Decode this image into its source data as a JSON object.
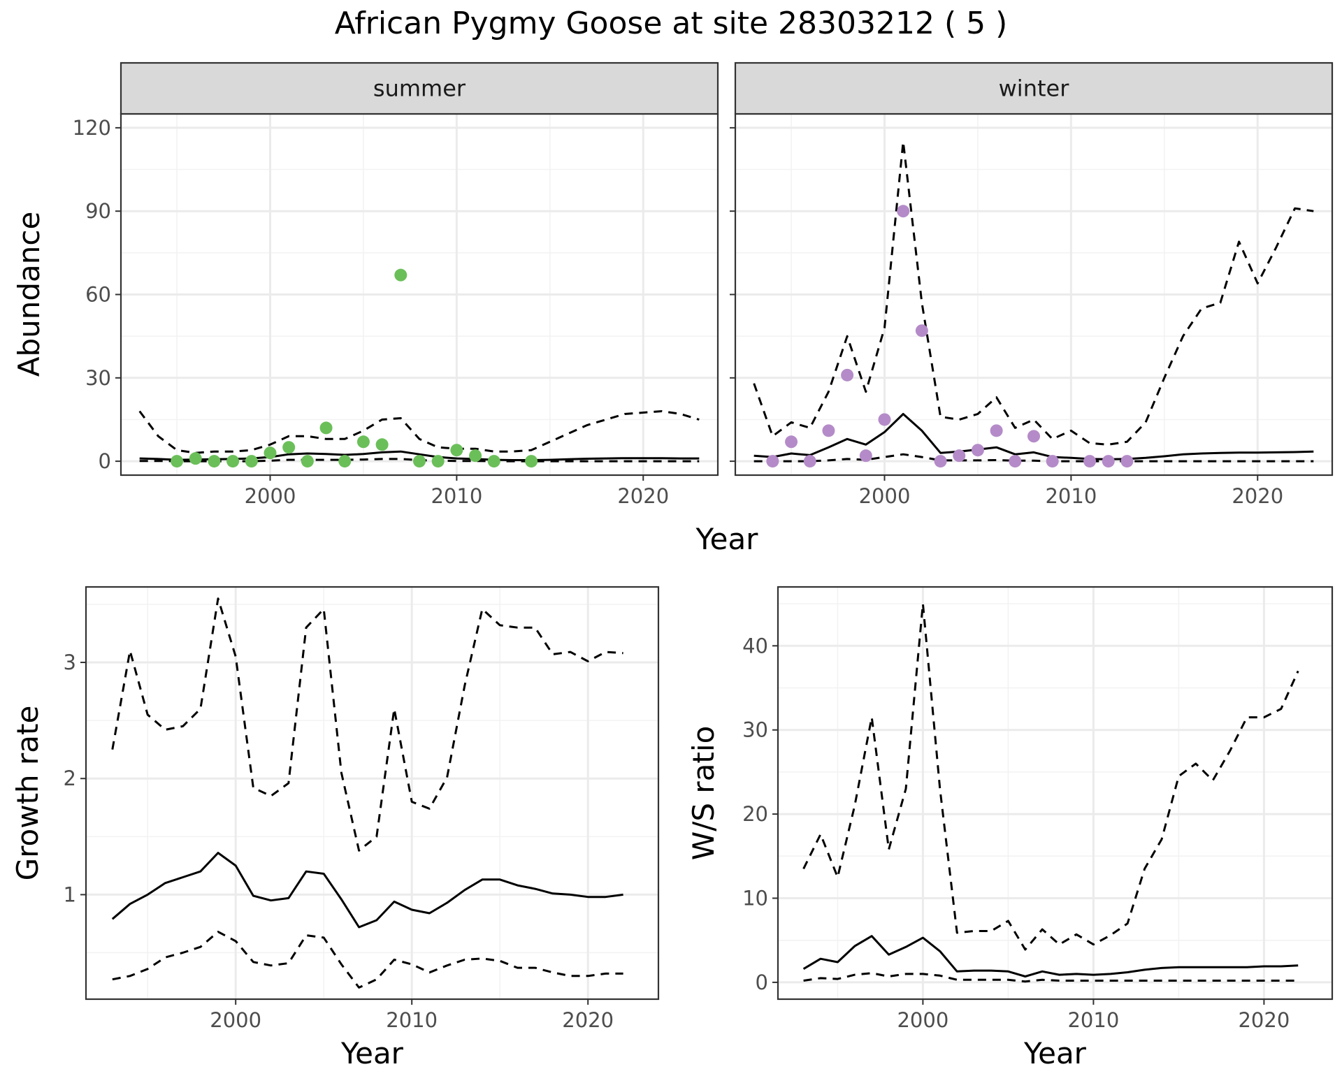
{
  "figure": {
    "title": "African Pygmy Goose at site 28303212 ( 5 )"
  },
  "chart_data": [
    {
      "id": "summer",
      "type": "line",
      "strip": "summer",
      "xlabel": "Year",
      "ylabel": "Abundance",
      "xlim": [
        1992,
        2024
      ],
      "ylim": [
        -5,
        125
      ],
      "xticks": [
        2000,
        2010,
        2020
      ],
      "yticks": [
        0,
        30,
        60,
        90,
        120
      ],
      "grid": true,
      "point_color": "#6BBF59",
      "series": [
        {
          "role": "estimate",
          "style": "solid",
          "x": [
            1993,
            1994,
            1995,
            1996,
            1997,
            1998,
            1999,
            2000,
            2001,
            2002,
            2003,
            2004,
            2005,
            2006,
            2007,
            2008,
            2009,
            2010,
            2011,
            2012,
            2013,
            2014,
            2015,
            2016,
            2017,
            2018,
            2019,
            2020,
            2021,
            2022,
            2023
          ],
          "y": [
            1.0,
            0.8,
            0.5,
            0.6,
            0.7,
            0.8,
            1.0,
            1.5,
            2.5,
            2.8,
            2.6,
            2.3,
            2.6,
            3.2,
            3.5,
            2.5,
            1.5,
            1.0,
            0.8,
            0.5,
            0.4,
            0.4,
            0.5,
            0.7,
            0.9,
            1.0,
            1.1,
            1.1,
            1.1,
            1.0,
            1.0
          ]
        },
        {
          "role": "upper",
          "style": "dashed",
          "x": [
            1993,
            1994,
            1995,
            1996,
            1997,
            1998,
            1999,
            2000,
            2001,
            2002,
            2003,
            2004,
            2005,
            2006,
            2007,
            2008,
            2009,
            2010,
            2011,
            2012,
            2013,
            2014,
            2015,
            2016,
            2017,
            2018,
            2019,
            2020,
            2021,
            2022,
            2023
          ],
          "y": [
            18,
            9,
            4,
            3,
            3.5,
            3.5,
            4,
            6,
            9,
            9,
            8,
            8,
            11,
            15,
            15.5,
            8,
            5,
            4.5,
            4.5,
            3.5,
            3.5,
            4,
            7,
            10,
            13,
            15,
            17,
            17.5,
            18,
            17,
            15
          ]
        },
        {
          "role": "lower",
          "style": "dashed",
          "x": [
            1993,
            1994,
            1995,
            1996,
            1997,
            1998,
            1999,
            2000,
            2001,
            2002,
            2003,
            2004,
            2005,
            2006,
            2007,
            2008,
            2009,
            2010,
            2011,
            2012,
            2013,
            2014,
            2015,
            2016,
            2017,
            2018,
            2019,
            2020,
            2021,
            2022,
            2023
          ],
          "y": [
            0.1,
            0.1,
            0,
            0,
            0,
            0,
            0,
            0.2,
            0.5,
            0.5,
            0.5,
            0.5,
            0.6,
            0.8,
            0.8,
            0.4,
            0.2,
            0.1,
            0.1,
            0,
            0,
            0,
            0,
            0,
            0,
            0,
            0,
            0,
            0,
            0,
            0
          ]
        },
        {
          "role": "observed",
          "style": "points",
          "x": [
            1995,
            1996,
            1997,
            1998,
            1999,
            2000,
            2001,
            2002,
            2003,
            2004,
            2005,
            2006,
            2007,
            2008,
            2009,
            2010,
            2011,
            2012,
            2014
          ],
          "y": [
            0,
            1,
            0,
            0,
            0,
            3,
            5,
            0,
            12,
            0,
            7,
            6,
            67,
            0,
            0,
            4,
            2,
            0,
            0
          ]
        }
      ]
    },
    {
      "id": "winter",
      "type": "line",
      "strip": "winter",
      "xlabel": "",
      "ylabel": "",
      "xlim": [
        1992,
        2024
      ],
      "ylim": [
        -5,
        125
      ],
      "xticks": [
        2000,
        2010,
        2020
      ],
      "yticks": [
        0,
        30,
        60,
        90,
        120
      ],
      "grid": true,
      "point_color": "#B48BC8",
      "series": [
        {
          "role": "estimate",
          "style": "solid",
          "x": [
            1993,
            1994,
            1995,
            1996,
            1997,
            1998,
            1999,
            2000,
            2001,
            2002,
            2003,
            2004,
            2005,
            2006,
            2007,
            2008,
            2009,
            2010,
            2011,
            2012,
            2013,
            2014,
            2015,
            2016,
            2017,
            2018,
            2019,
            2020,
            2021,
            2022,
            2023
          ],
          "y": [
            2,
            1.5,
            2.8,
            2.2,
            5,
            8,
            6,
            10.5,
            17,
            11,
            3,
            3.5,
            4.2,
            5,
            2.5,
            3.2,
            1.5,
            1.2,
            0.8,
            0.7,
            0.8,
            1.2,
            1.8,
            2.5,
            2.8,
            3,
            3.1,
            3.1,
            3.2,
            3.3,
            3.5
          ]
        },
        {
          "role": "upper",
          "style": "dashed",
          "x": [
            1993,
            1994,
            1995,
            1996,
            1997,
            1998,
            1999,
            2000,
            2001,
            2002,
            2003,
            2004,
            2005,
            2006,
            2007,
            2008,
            2009,
            2010,
            2011,
            2012,
            2013,
            2014,
            2015,
            2016,
            2017,
            2018,
            2019,
            2020,
            2021,
            2022,
            2023
          ],
          "y": [
            28,
            9,
            14,
            12,
            25,
            45,
            25,
            48,
            115,
            57,
            16,
            15,
            17,
            23,
            12,
            15,
            8,
            11,
            6.5,
            6,
            7,
            14,
            30,
            45,
            55,
            57,
            79,
            64,
            77,
            91,
            90
          ]
        },
        {
          "role": "lower",
          "style": "dashed",
          "x": [
            1993,
            1994,
            1995,
            1996,
            1997,
            1998,
            1999,
            2000,
            2001,
            2002,
            2003,
            2004,
            2005,
            2006,
            2007,
            2008,
            2009,
            2010,
            2011,
            2012,
            2013,
            2014,
            2015,
            2016,
            2017,
            2018,
            2019,
            2020,
            2021,
            2022,
            2023
          ],
          "y": [
            0,
            0,
            0,
            0,
            0.3,
            0.8,
            0.5,
            1.5,
            2.5,
            1.5,
            0.3,
            0.3,
            0.3,
            0.4,
            0.2,
            0.2,
            0,
            0,
            0,
            0,
            0,
            0,
            0,
            0,
            0,
            0,
            0,
            0,
            0,
            0,
            0
          ]
        },
        {
          "role": "observed",
          "style": "points",
          "x": [
            1994,
            1995,
            1996,
            1997,
            1998,
            1999,
            2000,
            2001,
            2002,
            2003,
            2004,
            2005,
            2006,
            2007,
            2008,
            2009,
            2011,
            2012,
            2013
          ],
          "y": [
            0,
            7,
            0,
            11,
            31,
            2,
            15,
            90,
            47,
            0,
            2,
            4,
            11,
            0,
            9,
            0,
            0,
            0,
            0
          ]
        }
      ]
    },
    {
      "id": "growth",
      "type": "line",
      "strip": "",
      "xlabel": "Year",
      "ylabel": "Growth rate",
      "xlim": [
        1991.5,
        2024
      ],
      "ylim": [
        0.1,
        3.65
      ],
      "xticks": [
        2000,
        2010,
        2020
      ],
      "yticks": [
        1,
        2,
        3
      ],
      "grid": true,
      "series": [
        {
          "role": "estimate",
          "style": "solid",
          "x": [
            1993,
            1994,
            1995,
            1996,
            1997,
            1998,
            1999,
            2000,
            2001,
            2002,
            2003,
            2004,
            2005,
            2006,
            2007,
            2008,
            2009,
            2010,
            2011,
            2012,
            2013,
            2014,
            2015,
            2016,
            2017,
            2018,
            2019,
            2020,
            2021,
            2022
          ],
          "y": [
            0.79,
            0.92,
            1.0,
            1.1,
            1.15,
            1.2,
            1.36,
            1.25,
            0.99,
            0.95,
            0.97,
            1.2,
            1.18,
            0.96,
            0.72,
            0.78,
            0.94,
            0.87,
            0.84,
            0.93,
            1.04,
            1.13,
            1.13,
            1.08,
            1.05,
            1.01,
            1.0,
            0.98,
            0.98,
            1.0
          ]
        },
        {
          "role": "upper",
          "style": "dashed",
          "x": [
            1993,
            1994,
            1995,
            1996,
            1997,
            1998,
            1999,
            2000,
            2001,
            2002,
            2003,
            2004,
            2005,
            2006,
            2007,
            2008,
            2009,
            2010,
            2011,
            2012,
            2013,
            2014,
            2015,
            2016,
            2017,
            2018,
            2019,
            2020,
            2021,
            2022
          ],
          "y": [
            2.25,
            3.1,
            2.55,
            2.42,
            2.45,
            2.6,
            3.55,
            3.05,
            1.92,
            1.85,
            1.96,
            3.3,
            3.46,
            2.05,
            1.38,
            1.5,
            2.6,
            1.8,
            1.74,
            2.01,
            2.8,
            3.46,
            3.32,
            3.3,
            3.3,
            3.07,
            3.09,
            3.01,
            3.09,
            3.08
          ]
        },
        {
          "role": "lower",
          "style": "dashed",
          "x": [
            1993,
            1994,
            1995,
            1996,
            1997,
            1998,
            1999,
            2000,
            2001,
            2002,
            2003,
            2004,
            2005,
            2006,
            2007,
            2008,
            2009,
            2010,
            2011,
            2012,
            2013,
            2014,
            2015,
            2016,
            2017,
            2018,
            2019,
            2020,
            2021,
            2022
          ],
          "y": [
            0.27,
            0.3,
            0.36,
            0.46,
            0.5,
            0.55,
            0.68,
            0.6,
            0.42,
            0.39,
            0.41,
            0.65,
            0.63,
            0.4,
            0.2,
            0.27,
            0.44,
            0.4,
            0.33,
            0.39,
            0.44,
            0.45,
            0.43,
            0.37,
            0.37,
            0.33,
            0.3,
            0.3,
            0.32,
            0.32
          ]
        }
      ]
    },
    {
      "id": "ratio",
      "type": "line",
      "strip": "",
      "xlabel": "Year",
      "ylabel": "W/S ratio",
      "xlim": [
        1991.5,
        2024
      ],
      "ylim": [
        -2,
        47
      ],
      "xticks": [
        2000,
        2010,
        2020
      ],
      "yticks": [
        0,
        10,
        20,
        30,
        40
      ],
      "grid": true,
      "series": [
        {
          "role": "estimate",
          "style": "solid",
          "x": [
            1993,
            1994,
            1995,
            1996,
            1997,
            1998,
            1999,
            2000,
            2001,
            2002,
            2003,
            2004,
            2005,
            2006,
            2007,
            2008,
            2009,
            2010,
            2011,
            2012,
            2013,
            2014,
            2015,
            2016,
            2017,
            2018,
            2019,
            2020,
            2021,
            2022
          ],
          "y": [
            1.6,
            2.8,
            2.4,
            4.3,
            5.5,
            3.3,
            4.2,
            5.3,
            3.7,
            1.3,
            1.4,
            1.4,
            1.3,
            0.7,
            1.3,
            0.9,
            1.0,
            0.9,
            1.0,
            1.2,
            1.5,
            1.7,
            1.8,
            1.8,
            1.8,
            1.8,
            1.8,
            1.9,
            1.9,
            2.0
          ]
        },
        {
          "role": "upper",
          "style": "dashed",
          "x": [
            1993,
            1994,
            1995,
            1996,
            1997,
            1998,
            1999,
            2000,
            2001,
            2002,
            2003,
            2004,
            2005,
            2006,
            2007,
            2008,
            2009,
            2010,
            2011,
            2012,
            2013,
            2014,
            2015,
            2016,
            2017,
            2018,
            2019,
            2020,
            2021,
            2022
          ],
          "y": [
            13.5,
            17.6,
            12.5,
            21,
            31.5,
            15.8,
            23,
            45,
            23,
            5.9,
            6.1,
            6.1,
            7.3,
            3.9,
            6.3,
            4.5,
            5.7,
            4.5,
            5.6,
            7,
            13.5,
            17,
            24.5,
            26,
            24,
            27.5,
            31.5,
            31.5,
            32.5,
            37
          ]
        },
        {
          "role": "lower",
          "style": "dashed",
          "x": [
            1993,
            1994,
            1995,
            1996,
            1997,
            1998,
            1999,
            2000,
            2001,
            2002,
            2003,
            2004,
            2005,
            2006,
            2007,
            2008,
            2009,
            2010,
            2011,
            2012,
            2013,
            2014,
            2015,
            2016,
            2017,
            2018,
            2019,
            2020,
            2021,
            2022
          ],
          "y": [
            0.2,
            0.5,
            0.4,
            0.9,
            1.1,
            0.7,
            1.0,
            1.0,
            0.8,
            0.3,
            0.3,
            0.3,
            0.3,
            0.1,
            0.3,
            0.2,
            0.2,
            0.2,
            0.2,
            0.2,
            0.2,
            0.2,
            0.2,
            0.2,
            0.2,
            0.2,
            0.2,
            0.2,
            0.2,
            0.2
          ]
        }
      ]
    }
  ]
}
